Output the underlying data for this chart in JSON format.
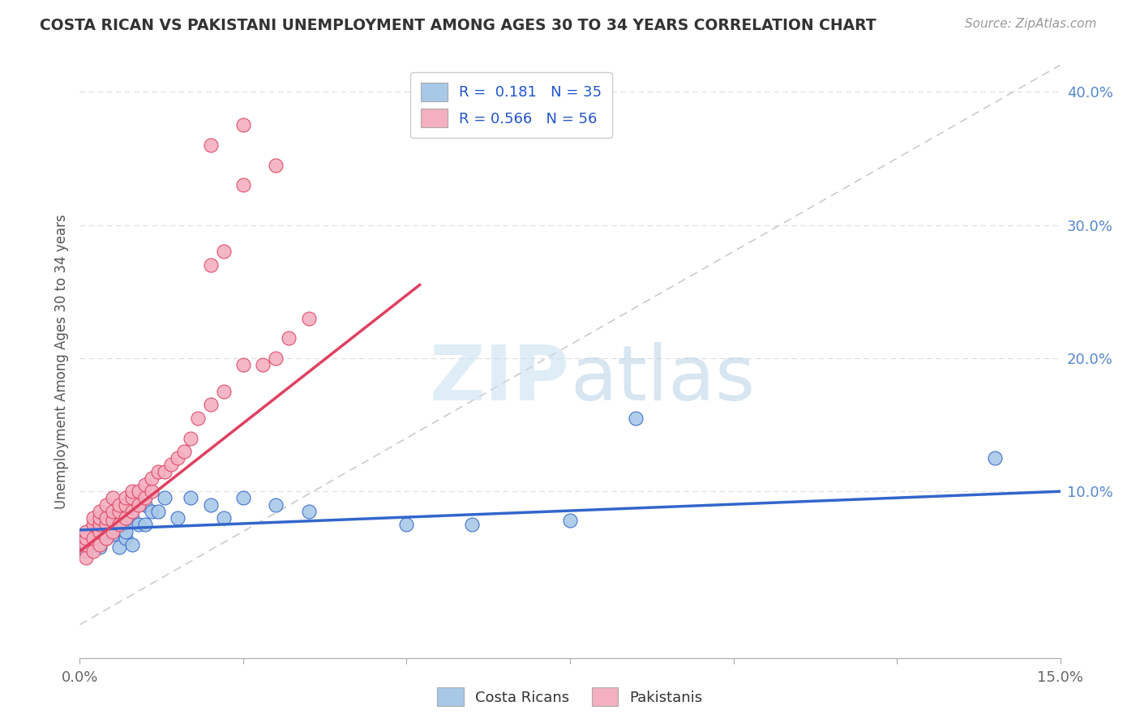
{
  "title": "COSTA RICAN VS PAKISTANI UNEMPLOYMENT AMONG AGES 30 TO 34 YEARS CORRELATION CHART",
  "source": "Source: ZipAtlas.com",
  "ylabel": "Unemployment Among Ages 30 to 34 years",
  "xlim": [
    0.0,
    0.15
  ],
  "ylim": [
    -0.025,
    0.42
  ],
  "xticks": [
    0.0,
    0.025,
    0.05,
    0.075,
    0.1,
    0.125,
    0.15
  ],
  "xticklabels": [
    "0.0%",
    "",
    "",
    "",
    "",
    "",
    "15.0%"
  ],
  "yticks_right": [
    0.1,
    0.2,
    0.3,
    0.4
  ],
  "ytick_right_labels": [
    "10.0%",
    "20.0%",
    "30.0%",
    "40.0%"
  ],
  "blue_color": "#a8c8e8",
  "pink_color": "#f4b0c0",
  "blue_line_color": "#3366cc",
  "pink_line_color": "#e04060",
  "ref_line_color": "#cccccc",
  "background_color": "#ffffff",
  "watermark_zip": "ZIP",
  "watermark_atlas": "atlas",
  "costa_rican_x": [
    0.001,
    0.001,
    0.002,
    0.002,
    0.003,
    0.003,
    0.003,
    0.004,
    0.004,
    0.005,
    0.005,
    0.006,
    0.006,
    0.007,
    0.007,
    0.008,
    0.008,
    0.009,
    0.01,
    0.01,
    0.011,
    0.012,
    0.013,
    0.015,
    0.017,
    0.02,
    0.022,
    0.025,
    0.03,
    0.035,
    0.05,
    0.06,
    0.075,
    0.14,
    0.085
  ],
  "costa_rican_y": [
    0.065,
    0.055,
    0.07,
    0.06,
    0.068,
    0.058,
    0.072,
    0.075,
    0.065,
    0.08,
    0.068,
    0.072,
    0.058,
    0.065,
    0.07,
    0.06,
    0.08,
    0.075,
    0.075,
    0.09,
    0.085,
    0.085,
    0.095,
    0.08,
    0.095,
    0.09,
    0.08,
    0.095,
    0.09,
    0.085,
    0.075,
    0.075,
    0.078,
    0.125,
    0.155
  ],
  "pakistani_x": [
    0.001,
    0.001,
    0.001,
    0.001,
    0.002,
    0.002,
    0.002,
    0.002,
    0.003,
    0.003,
    0.003,
    0.003,
    0.003,
    0.004,
    0.004,
    0.004,
    0.004,
    0.005,
    0.005,
    0.005,
    0.005,
    0.006,
    0.006,
    0.006,
    0.007,
    0.007,
    0.007,
    0.008,
    0.008,
    0.008,
    0.009,
    0.009,
    0.01,
    0.01,
    0.011,
    0.011,
    0.012,
    0.013,
    0.014,
    0.015,
    0.016,
    0.017,
    0.018,
    0.02,
    0.022,
    0.025,
    0.028,
    0.03,
    0.032,
    0.035,
    0.02,
    0.022,
    0.025,
    0.03,
    0.02,
    0.025
  ],
  "pakistani_y": [
    0.05,
    0.06,
    0.065,
    0.07,
    0.055,
    0.065,
    0.075,
    0.08,
    0.06,
    0.07,
    0.075,
    0.08,
    0.085,
    0.065,
    0.075,
    0.08,
    0.09,
    0.07,
    0.078,
    0.085,
    0.095,
    0.075,
    0.085,
    0.09,
    0.08,
    0.09,
    0.095,
    0.085,
    0.095,
    0.1,
    0.09,
    0.1,
    0.095,
    0.105,
    0.1,
    0.11,
    0.115,
    0.115,
    0.12,
    0.125,
    0.13,
    0.14,
    0.155,
    0.165,
    0.175,
    0.195,
    0.195,
    0.2,
    0.215,
    0.23,
    0.27,
    0.28,
    0.33,
    0.345,
    0.36,
    0.375
  ],
  "cr_trend_x": [
    0.0,
    0.15
  ],
  "cr_trend_y": [
    0.071,
    0.1
  ],
  "pak_trend_x": [
    0.0,
    0.052
  ],
  "pak_trend_y": [
    0.055,
    0.255
  ]
}
